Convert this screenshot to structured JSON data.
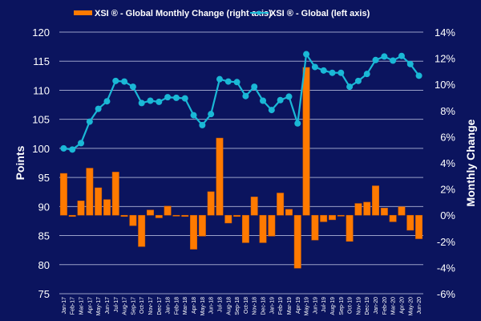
{
  "chart_data": {
    "type": "bar+line",
    "categories": [
      "Jan-17",
      "Feb-17",
      "Mar-17",
      "Apr-17",
      "May-17",
      "Jun-17",
      "Jul-17",
      "Aug-17",
      "Sep-17",
      "Oct-17",
      "Nov-17",
      "Dec-17",
      "Jan-18",
      "Feb-18",
      "Mar-18",
      "Apr-18",
      "May-18",
      "Jun-18",
      "Jul-18",
      "Aug-18",
      "Sep-18",
      "Oct-18",
      "Nov-18",
      "Dec-18",
      "Jan-19",
      "Feb-19",
      "Mar-19",
      "Apr-19",
      "May-19",
      "Jun-19",
      "Jul-19",
      "Aug-19",
      "Sep-19",
      "Oct-19",
      "Nov-19",
      "Dec-19",
      "Jan-20",
      "Feb-20",
      "Mar-20",
      "Apr-20",
      "May-20",
      "Jun-20"
    ],
    "series": [
      {
        "name": "XSI ® - Global Monthly Change (right axis)",
        "type": "bar",
        "axis": "right",
        "color": "#ff7a00",
        "values": [
          3.2,
          -0.1,
          1.1,
          3.6,
          2.1,
          1.2,
          3.3,
          -0.1,
          -0.8,
          -2.4,
          0.4,
          -0.2,
          0.7,
          -0.05,
          -0.1,
          -2.6,
          -1.6,
          1.8,
          5.9,
          -0.6,
          -0.1,
          -2.1,
          1.4,
          -2.1,
          -1.6,
          1.7,
          0.45,
          -4.05,
          11.3,
          -1.9,
          -0.5,
          -0.35,
          -0.05,
          -2.0,
          0.9,
          1.0,
          2.25,
          0.55,
          -0.5,
          0.65,
          -1.15,
          -1.8
        ]
      },
      {
        "name": "XSI ® - Global (left axis)",
        "type": "line",
        "axis": "left",
        "color": "#1ab8d6",
        "values": [
          100,
          99.8,
          100.9,
          104.6,
          106.8,
          108.1,
          111.6,
          111.5,
          110.6,
          107.8,
          108.2,
          108,
          108.8,
          108.7,
          108.6,
          105.7,
          104,
          105.9,
          111.9,
          111.5,
          111.4,
          109,
          110.6,
          108.2,
          106.6,
          108.3,
          108.9,
          104.3,
          116.2,
          114,
          113.4,
          113,
          113,
          110.6,
          111.6,
          112.8,
          115.2,
          115.8,
          115.1,
          115.9,
          114.5,
          112.5
        ]
      }
    ],
    "left_axis": {
      "title": "Points",
      "range": [
        75,
        120
      ],
      "ticks": [
        "75",
        "80",
        "85",
        "90",
        "95",
        "100",
        "105",
        "110",
        "115",
        "120"
      ]
    },
    "right_axis": {
      "title": "Monthly Change",
      "range": [
        -6,
        14
      ],
      "ticks": [
        "-6%",
        "-4%",
        "-2%",
        "0%",
        "2%",
        "4%",
        "6%",
        "8%",
        "10%",
        "12%",
        "14%"
      ]
    },
    "grid": true,
    "legend": "top-center",
    "background": "#0b145e"
  }
}
